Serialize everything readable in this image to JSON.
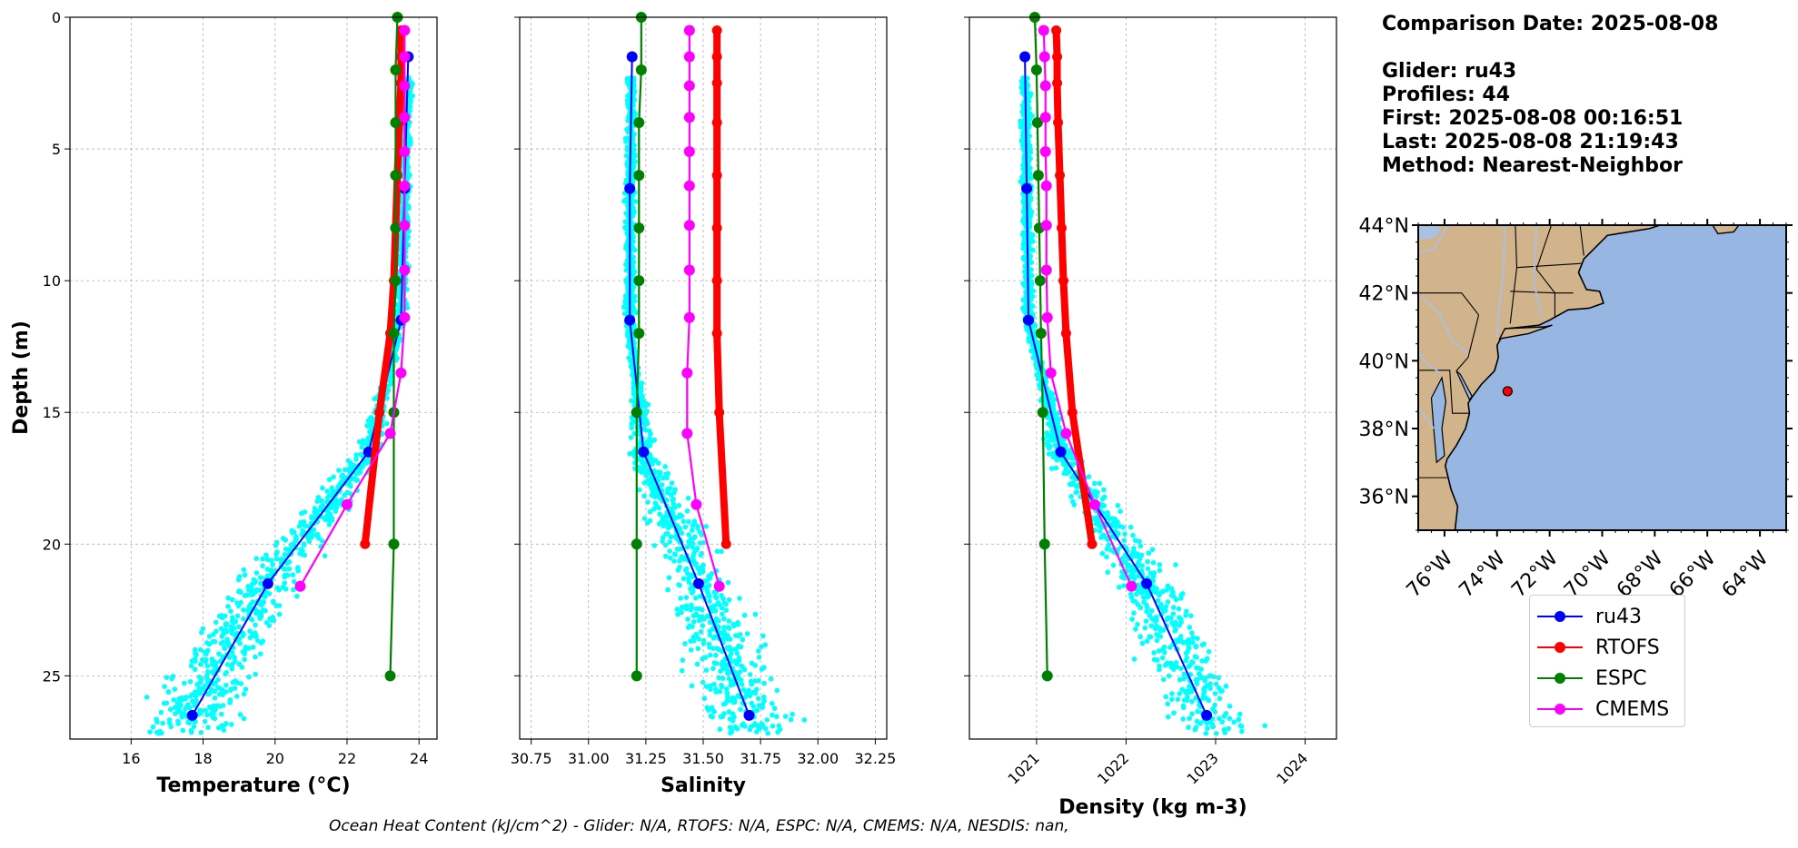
{
  "info": {
    "comparison_date": "Comparison Date: 2025-08-08",
    "glider": "Glider: ru43",
    "profiles": "Profiles: 44",
    "first": "First: 2025-08-08 00:16:51",
    "last": "Last: 2025-08-08 21:19:43",
    "method": "Method: Nearest-Neighbor"
  },
  "footer": "Ocean Heat Content (kJ/cm^2) - Glider: N/A,  RTOFS: N/A,  ESPC: N/A,  CMEMS: N/A,  NESDIS: nan,",
  "colors": {
    "ru43": "#0000ff",
    "RTOFS": "#ff0000",
    "ESPC": "#008000",
    "CMEMS": "#ff00ff",
    "scatter": "#00ffff",
    "land": "#d2b48c",
    "ocean": "#98b6e2",
    "lakes": "#a9c1e3"
  },
  "legend": [
    {
      "key": "ru43",
      "label": "ru43"
    },
    {
      "key": "RTOFS",
      "label": "RTOFS"
    },
    {
      "key": "ESPC",
      "label": "ESPC"
    },
    {
      "key": "CMEMS",
      "label": "CMEMS"
    }
  ],
  "map": {
    "lon_range": [
      -77,
      -63
    ],
    "lat_range": [
      35,
      44
    ],
    "lon_ticks": [
      -76,
      -74,
      -72,
      -70,
      -68,
      -66,
      -64
    ],
    "lon_labels": [
      "76°W",
      "74°W",
      "72°W",
      "70°W",
      "68°W",
      "66°W",
      "64°W"
    ],
    "lat_ticks": [
      36,
      38,
      40,
      42,
      44
    ],
    "lat_labels": [
      "36°N",
      "38°N",
      "40°N",
      "42°N",
      "44°N"
    ],
    "glider_position": {
      "lon": -73.6,
      "lat": 39.1
    }
  },
  "chart_data": [
    {
      "type": "scatter+line",
      "title": "",
      "xlabel": "Temperature (°C)",
      "ylabel": "Depth (m)",
      "xlim": [
        14.3,
        24.5
      ],
      "ylim": [
        27.4,
        0
      ],
      "xticks": [
        16,
        18,
        20,
        22,
        24
      ],
      "xtick_labels": [
        "16",
        "18",
        "20",
        "22",
        "24"
      ],
      "yticks": [
        0,
        5,
        10,
        15,
        20,
        25
      ],
      "ytick_labels": [
        "0",
        "5",
        "10",
        "15",
        "20",
        "25"
      ],
      "series": [
        {
          "name": "ru43",
          "depth": [
            1.5,
            6.5,
            11.5,
            16.5,
            21.5,
            26.5
          ],
          "values": [
            23.7,
            23.6,
            23.5,
            22.6,
            19.8,
            17.7
          ]
        },
        {
          "name": "RTOFS",
          "depth": [
            0.5,
            1.5,
            2.5,
            4,
            6,
            8,
            10,
            12,
            15,
            20
          ],
          "values": [
            23.5,
            23.5,
            23.5,
            23.45,
            23.4,
            23.35,
            23.3,
            23.2,
            22.9,
            22.5
          ]
        },
        {
          "name": "ESPC",
          "depth": [
            0,
            2,
            4,
            6,
            8,
            10,
            12,
            15,
            20,
            25
          ],
          "values": [
            23.4,
            23.35,
            23.35,
            23.35,
            23.35,
            23.35,
            23.3,
            23.3,
            23.3,
            23.2
          ]
        },
        {
          "name": "CMEMS",
          "depth": [
            0.5,
            1.5,
            2.6,
            3.8,
            5.1,
            6.4,
            7.9,
            9.6,
            11.4,
            13.5,
            15.8,
            18.5,
            21.6
          ],
          "values": [
            23.6,
            23.6,
            23.6,
            23.6,
            23.6,
            23.6,
            23.6,
            23.6,
            23.6,
            23.5,
            23.2,
            22.0,
            20.7
          ]
        }
      ]
    },
    {
      "type": "scatter+line",
      "title": "",
      "xlabel": "Salinity",
      "ylabel": "",
      "xlim": [
        30.7,
        32.3
      ],
      "ylim": [
        27.4,
        0
      ],
      "xticks": [
        30.75,
        31.0,
        31.25,
        31.5,
        31.75,
        32.0,
        32.25
      ],
      "xtick_labels": [
        "30.75",
        "31.00",
        "31.25",
        "31.50",
        "31.75",
        "32.00",
        "32.25"
      ],
      "series": [
        {
          "name": "ru43",
          "depth": [
            1.5,
            6.5,
            11.5,
            16.5,
            21.5,
            26.5
          ],
          "values": [
            31.19,
            31.18,
            31.18,
            31.24,
            31.48,
            31.7
          ]
        },
        {
          "name": "RTOFS",
          "depth": [
            0.5,
            1.5,
            2.5,
            4,
            6,
            8,
            10,
            12,
            15,
            20
          ],
          "values": [
            31.56,
            31.56,
            31.56,
            31.56,
            31.56,
            31.56,
            31.56,
            31.56,
            31.57,
            31.6
          ]
        },
        {
          "name": "ESPC",
          "depth": [
            0,
            2,
            4,
            6,
            8,
            10,
            12,
            15,
            20,
            25
          ],
          "values": [
            31.23,
            31.23,
            31.22,
            31.22,
            31.22,
            31.22,
            31.22,
            31.21,
            31.21,
            31.21
          ]
        },
        {
          "name": "CMEMS",
          "depth": [
            0.5,
            1.5,
            2.6,
            3.8,
            5.1,
            6.4,
            7.9,
            9.6,
            11.4,
            13.5,
            15.8,
            18.5,
            21.6
          ],
          "values": [
            31.44,
            31.44,
            31.44,
            31.44,
            31.44,
            31.44,
            31.44,
            31.44,
            31.44,
            31.43,
            31.43,
            31.47,
            31.57
          ]
        }
      ]
    },
    {
      "type": "scatter+line",
      "title": "",
      "xlabel": "Density (kg m-3)",
      "ylabel": "",
      "xlim": [
        1020.25,
        1024.35
      ],
      "ylim": [
        27.4,
        0
      ],
      "xticks": [
        1021,
        1022,
        1023,
        1024
      ],
      "xtick_labels": [
        "1021",
        "1022",
        "1023",
        "1024"
      ],
      "series": [
        {
          "name": "ru43",
          "depth": [
            1.5,
            6.5,
            11.5,
            16.5,
            21.5,
            26.5
          ],
          "values": [
            1020.87,
            1020.89,
            1020.91,
            1021.27,
            1022.23,
            1022.9
          ]
        },
        {
          "name": "RTOFS",
          "depth": [
            0.5,
            1.5,
            2.5,
            4,
            6,
            8,
            10,
            12,
            15,
            20
          ],
          "values": [
            1021.22,
            1021.23,
            1021.23,
            1021.24,
            1021.26,
            1021.28,
            1021.3,
            1021.33,
            1021.4,
            1021.62
          ]
        },
        {
          "name": "ESPC",
          "depth": [
            0,
            2,
            4,
            6,
            8,
            10,
            12,
            15,
            20,
            25
          ],
          "values": [
            1020.98,
            1021.0,
            1021.01,
            1021.02,
            1021.03,
            1021.04,
            1021.05,
            1021.07,
            1021.09,
            1021.12
          ]
        },
        {
          "name": "CMEMS",
          "depth": [
            0.5,
            1.5,
            2.6,
            3.8,
            5.1,
            6.4,
            7.9,
            9.6,
            11.4,
            13.5,
            15.8,
            18.5,
            21.6
          ],
          "values": [
            1021.08,
            1021.09,
            1021.1,
            1021.1,
            1021.1,
            1021.11,
            1021.11,
            1021.11,
            1021.12,
            1021.16,
            1021.33,
            1021.65,
            1022.06
          ]
        }
      ]
    }
  ]
}
